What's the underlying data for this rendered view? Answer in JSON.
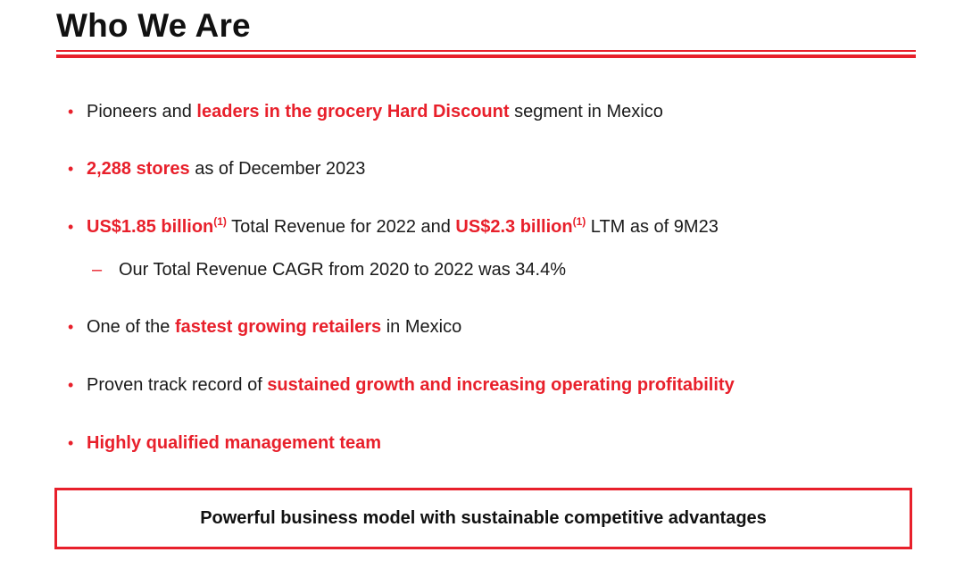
{
  "slide": {
    "title": "Who We Are"
  },
  "bullets": {
    "b1": {
      "t1": "Pioneers and ",
      "h1": "leaders in the grocery Hard Discount",
      "t2": " segment in Mexico"
    },
    "b2": {
      "h1": "2,288 stores",
      "t1": " as of December 2023"
    },
    "b3": {
      "h1": "US$1.85 billion",
      "s1": "(1)",
      "t1": " Total Revenue for 2022 and ",
      "h2": "US$2.3 billion",
      "s2": "(1)",
      "t2": " LTM as of 9M23"
    },
    "b3sub": {
      "t1": "Our Total Revenue CAGR from 2020 to 2022 was 34.4%"
    },
    "b4": {
      "t1": "One of the ",
      "h1": "fastest growing retailers",
      "t2": " in Mexico"
    },
    "b5": {
      "t1": "Proven track record of ",
      "h1": "sustained growth and increasing operating profitability"
    },
    "b6": {
      "h1": "Highly qualified management team"
    }
  },
  "callout": {
    "text": "Powerful business model with sustainable competitive advantages"
  },
  "symbols": {
    "bullet": "•",
    "dash": "–"
  },
  "colors": {
    "accent": "#e8202b",
    "text": "#1a1a1a"
  }
}
